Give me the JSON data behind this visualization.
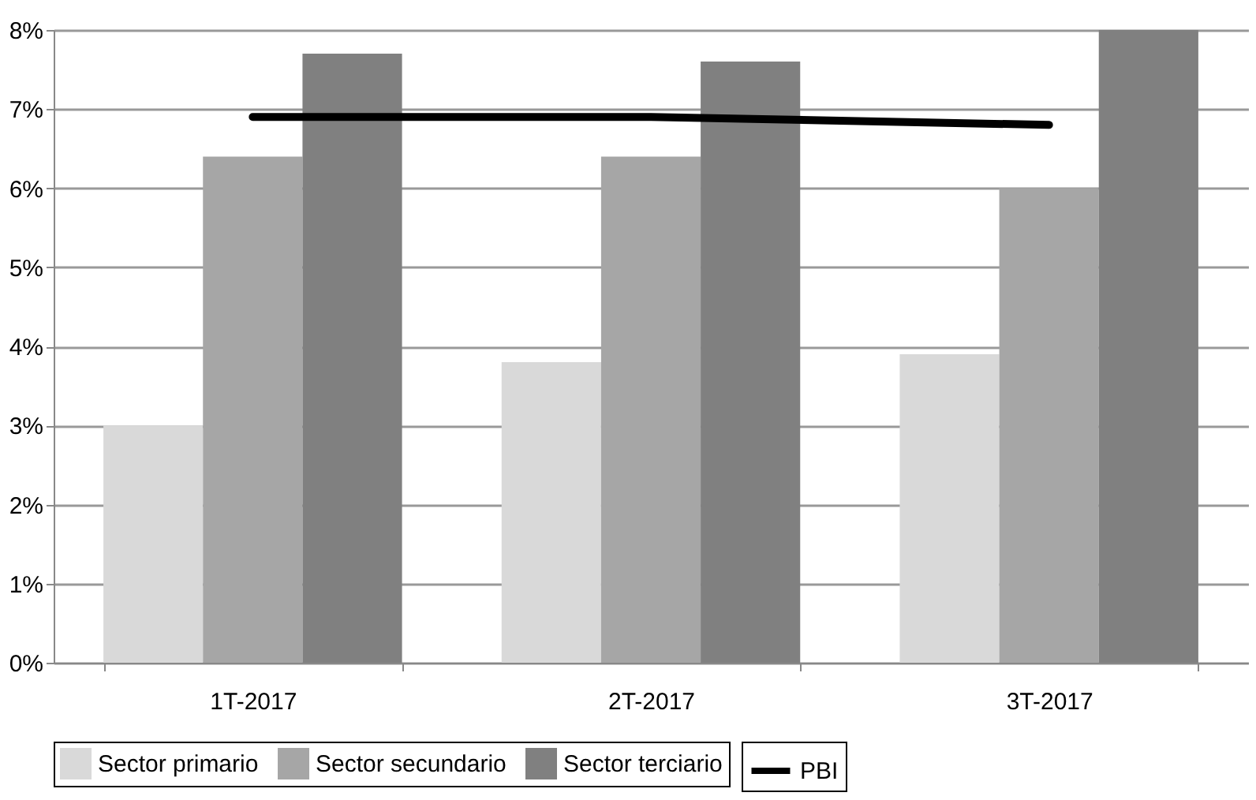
{
  "chart_data": {
    "type": "bar",
    "categories": [
      "1T-2017",
      "2T-2017",
      "3T-2017"
    ],
    "series": [
      {
        "name": "Sector primario",
        "color": "#d9d9d9",
        "values": [
          3.0,
          3.8,
          3.9
        ]
      },
      {
        "name": "Sector secundario",
        "color": "#a6a6a6",
        "values": [
          6.4,
          6.4,
          6.0
        ]
      },
      {
        "name": "Sector terciario",
        "color": "#808080",
        "values": [
          7.7,
          7.6,
          8.0
        ]
      },
      {
        "name": "PBI",
        "color": "#000000",
        "type": "line",
        "values": [
          6.9,
          6.9,
          6.8
        ]
      }
    ],
    "ylim": [
      0,
      8
    ],
    "yticks": [
      {
        "value": 0,
        "label": "0%"
      },
      {
        "value": 1,
        "label": "1%"
      },
      {
        "value": 2,
        "label": "2%"
      },
      {
        "value": 3,
        "label": "3%"
      },
      {
        "value": 4,
        "label": "4%"
      },
      {
        "value": 5,
        "label": "5%"
      },
      {
        "value": 6,
        "label": "6%"
      },
      {
        "value": 7,
        "label": "7%"
      },
      {
        "value": 8,
        "label": "8%"
      }
    ],
    "grid": "y",
    "legend": "bottom",
    "marker": "none",
    "line_style": "solid"
  }
}
